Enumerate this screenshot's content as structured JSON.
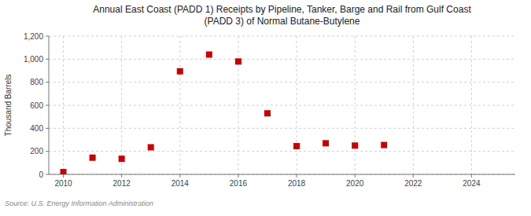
{
  "chart_data": {
    "type": "scatter",
    "title": "Annual East Coast (PADD 1) Receipts by Pipeline, Tanker, Barge and Rail from Gulf Coast\n(PADD 3) of Normal Butane-Butylene",
    "ylabel": "Thousand Barrels",
    "source": "Source: U.S. Energy Information Administration",
    "x": [
      2010,
      2011,
      2012,
      2013,
      2014,
      2015,
      2016,
      2017,
      2018,
      2019,
      2020,
      2021
    ],
    "values": [
      20,
      145,
      135,
      235,
      895,
      1040,
      980,
      530,
      245,
      270,
      250,
      255
    ],
    "color": "#cc0000",
    "marker": "square",
    "xlim": [
      2009.5,
      2025.5
    ],
    "ylim": [
      0,
      1200
    ],
    "xticks": [
      2010,
      2012,
      2014,
      2016,
      2018,
      2020,
      2022,
      2024
    ],
    "yticks": [
      0,
      200,
      400,
      600,
      800,
      {
        "value": 1000,
        "label": "1,000"
      },
      {
        "value": 1200,
        "label": "1,200"
      }
    ],
    "grid": true
  }
}
